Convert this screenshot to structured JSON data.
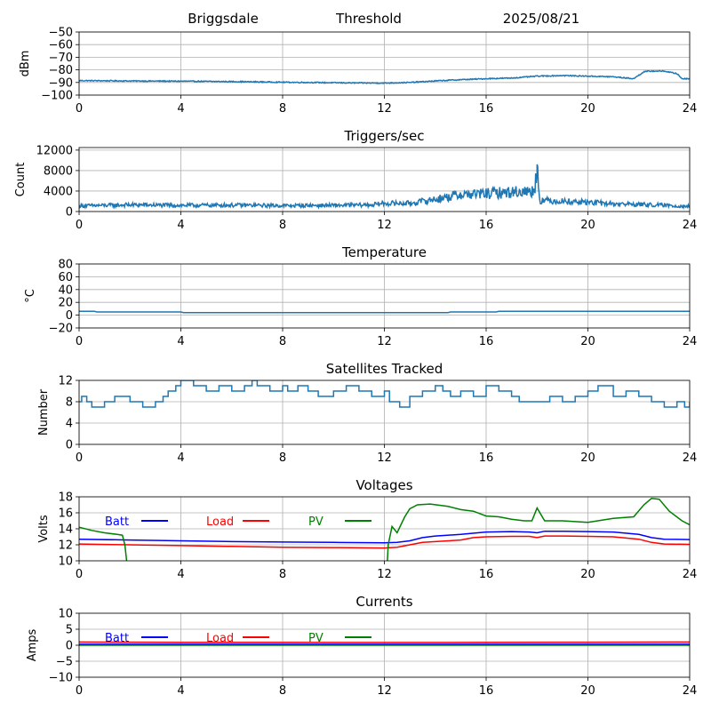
{
  "header": {
    "station": "Briggsdale",
    "mode": "Threshold",
    "date": "2025/08/21"
  },
  "colors": {
    "series_default": "#1f77b4",
    "batt": "#0000ff",
    "load": "#ff0000",
    "pv": "#008000"
  },
  "chart_data": [
    {
      "id": "threshold",
      "type": "line",
      "title": "",
      "xlabel": "",
      "ylabel": "dBm",
      "xlim": [
        0,
        24
      ],
      "ylim": [
        -100,
        -50
      ],
      "xticks": [
        0,
        4,
        8,
        12,
        16,
        20,
        24
      ],
      "yticks": [
        -100,
        -90,
        -80,
        -70,
        -60,
        -50
      ],
      "grid": true,
      "noise": 0.4,
      "series": [
        {
          "color": "#1f77b4",
          "x": [
            0,
            2,
            4,
            6,
            8,
            9,
            10,
            11,
            12,
            13,
            14,
            15,
            16,
            17,
            18,
            19,
            20,
            21,
            21.8,
            22.2,
            22.5,
            23,
            23.5,
            23.7,
            24
          ],
          "y": [
            -88.5,
            -88.8,
            -89,
            -89.3,
            -89.8,
            -90,
            -90.2,
            -90.4,
            -90.5,
            -90,
            -88.8,
            -87.8,
            -87,
            -86.5,
            -85,
            -84.5,
            -85,
            -85.5,
            -87,
            -81.5,
            -81,
            -81,
            -83,
            -87,
            -87
          ]
        }
      ]
    },
    {
      "id": "triggers",
      "type": "line",
      "title": "Triggers/sec",
      "xlabel": "",
      "ylabel": "Count",
      "xlim": [
        0,
        24
      ],
      "ylim": [
        0,
        12500
      ],
      "xticks": [
        0,
        4,
        8,
        12,
        16,
        20,
        24
      ],
      "yticks": [
        0,
        4000,
        8000,
        12000
      ],
      "grid": true,
      "noise": 500,
      "series": [
        {
          "color": "#1f77b4",
          "x": [
            0,
            2,
            4,
            6,
            8,
            10,
            11.5,
            12,
            13,
            14,
            15,
            16,
            17,
            17.9,
            18,
            18.1,
            19,
            20,
            21,
            22,
            23,
            24
          ],
          "y": [
            1100,
            1300,
            1200,
            1250,
            1150,
            1200,
            1300,
            1600,
            1600,
            2400,
            3300,
            3500,
            3800,
            4000,
            9200,
            2200,
            2000,
            1800,
            1500,
            1400,
            1200,
            1000
          ]
        }
      ]
    },
    {
      "id": "temperature",
      "type": "line",
      "title": "Temperature",
      "xlabel": "",
      "ylabel": "°C",
      "xlim": [
        0,
        24
      ],
      "ylim": [
        -20,
        80
      ],
      "xticks": [
        0,
        4,
        8,
        12,
        16,
        20,
        24
      ],
      "yticks": [
        -20,
        0,
        20,
        40,
        60,
        80
      ],
      "grid": true,
      "noise": 0,
      "series": [
        {
          "color": "#1f77b4",
          "x": [
            0,
            0.6,
            0.7,
            4,
            4.1,
            14.5,
            14.6,
            16.4,
            16.5,
            24
          ],
          "y": [
            6,
            6,
            5,
            5,
            4,
            4,
            5,
            5,
            6,
            6
          ]
        }
      ]
    },
    {
      "id": "satellites",
      "type": "line",
      "title": "Satellites Tracked",
      "xlabel": "",
      "ylabel": "Number",
      "xlim": [
        0,
        24
      ],
      "ylim": [
        0,
        12
      ],
      "xticks": [
        0,
        4,
        8,
        12,
        16,
        20,
        24
      ],
      "yticks": [
        0,
        4,
        8,
        12
      ],
      "grid": true,
      "step": true,
      "noise": 0,
      "series": [
        {
          "color": "#1f77b4",
          "x": [
            0,
            0.1,
            0.3,
            0.5,
            0.8,
            1,
            1.4,
            2,
            2.5,
            3,
            3.3,
            3.5,
            3.8,
            4,
            4.5,
            5,
            5.5,
            6,
            6.5,
            6.8,
            7,
            7.5,
            8,
            8.2,
            8.6,
            9,
            9.4,
            10,
            10.5,
            11,
            11.5,
            12,
            12.2,
            12.6,
            13,
            13.5,
            14,
            14.3,
            14.6,
            15,
            15.5,
            16,
            16.5,
            17,
            17.3,
            18,
            18.5,
            19,
            19.5,
            20,
            20.4,
            21,
            21.5,
            22,
            22.5,
            23,
            23.5,
            23.8,
            24
          ],
          "y": [
            8,
            9,
            8,
            7,
            7,
            8,
            9,
            8,
            7,
            8,
            9,
            10,
            11,
            12,
            11,
            10,
            11,
            10,
            11,
            12,
            11,
            10,
            11,
            10,
            11,
            10,
            9,
            10,
            11,
            10,
            9,
            10,
            8,
            7,
            9,
            10,
            11,
            10,
            9,
            10,
            9,
            11,
            10,
            9,
            8,
            8,
            9,
            8,
            9,
            10,
            11,
            9,
            10,
            9,
            8,
            7,
            8,
            7,
            8
          ]
        }
      ]
    },
    {
      "id": "voltages",
      "type": "line",
      "title": "Voltages",
      "xlabel": "",
      "ylabel": "Volts",
      "xlim": [
        0,
        24
      ],
      "ylim": [
        10,
        18
      ],
      "xticks": [
        0,
        4,
        8,
        12,
        16,
        20,
        24
      ],
      "yticks": [
        10,
        12,
        14,
        16,
        18
      ],
      "grid": true,
      "legend": "top-left",
      "noise": 0,
      "series": [
        {
          "name": "Batt",
          "color": "#0000ff",
          "x": [
            0,
            2,
            4,
            6,
            8,
            10,
            12,
            12.5,
            13,
            13.5,
            14,
            15,
            16,
            17,
            17.7,
            18,
            18.3,
            19,
            20,
            21,
            22,
            22.5,
            23,
            24
          ],
          "y": [
            12.7,
            12.6,
            12.5,
            12.4,
            12.35,
            12.3,
            12.25,
            12.3,
            12.5,
            12.9,
            13.1,
            13.3,
            13.6,
            13.65,
            13.6,
            13.5,
            13.7,
            13.7,
            13.65,
            13.6,
            13.3,
            12.9,
            12.7,
            12.65
          ]
        },
        {
          "name": "Load",
          "color": "#ff0000",
          "x": [
            0,
            2,
            4,
            6,
            8,
            10,
            12,
            12.5,
            13,
            13.5,
            14,
            15,
            15.5,
            16,
            17,
            17.7,
            18,
            18.3,
            19,
            20,
            21,
            22,
            22.5,
            23,
            24
          ],
          "y": [
            12.1,
            12.0,
            11.9,
            11.8,
            11.7,
            11.65,
            11.6,
            11.7,
            12.0,
            12.3,
            12.4,
            12.6,
            12.9,
            13.0,
            13.05,
            13.05,
            12.9,
            13.1,
            13.1,
            13.05,
            13.0,
            12.7,
            12.3,
            12.1,
            12.05
          ]
        },
        {
          "name": "PV",
          "color": "#008000",
          "x": [
            0,
            0.5,
            1,
            1.5,
            1.7,
            1.8,
            1.85,
            1.9,
            12.1,
            12.15,
            12.3,
            12.5,
            12.8,
            13,
            13.3,
            13.8,
            14.5,
            15,
            15.5,
            16,
            16.5,
            17,
            17.5,
            17.8,
            18,
            18.3,
            19,
            20,
            21,
            21.8,
            22.2,
            22.5,
            22.8,
            23.2,
            23.7,
            24
          ],
          "y": [
            14.2,
            13.8,
            13.5,
            13.3,
            13.2,
            12.0,
            10.5,
            9.0,
            9.0,
            12.0,
            14.3,
            13.5,
            15.5,
            16.5,
            17.0,
            17.1,
            16.8,
            16.4,
            16.2,
            15.6,
            15.5,
            15.2,
            15.0,
            15.0,
            16.6,
            15.0,
            15.0,
            14.8,
            15.3,
            15.5,
            17.0,
            17.8,
            17.7,
            16.2,
            15.0,
            14.5
          ]
        }
      ]
    },
    {
      "id": "currents",
      "type": "line",
      "title": "Currents",
      "xlabel": "",
      "ylabel": "Amps",
      "xlim": [
        0,
        24
      ],
      "ylim": [
        -10,
        10
      ],
      "xticks": [
        0,
        4,
        8,
        12,
        16,
        20,
        24
      ],
      "yticks": [
        -10,
        -5,
        0,
        5,
        10
      ],
      "grid": true,
      "legend": "top-left",
      "noise": 0,
      "series": [
        {
          "name": "Batt",
          "color": "#0000ff",
          "x": [
            0,
            24
          ],
          "y": [
            0.3,
            0.3
          ]
        },
        {
          "name": "Load",
          "color": "#ff0000",
          "x": [
            0,
            4,
            8,
            12,
            16,
            20,
            24
          ],
          "y": [
            1.0,
            0.9,
            0.9,
            0.85,
            0.9,
            0.95,
            1.0
          ]
        },
        {
          "name": "PV",
          "color": "#008000",
          "x": [
            0,
            24
          ],
          "y": [
            0.0,
            0.0
          ]
        }
      ]
    }
  ]
}
